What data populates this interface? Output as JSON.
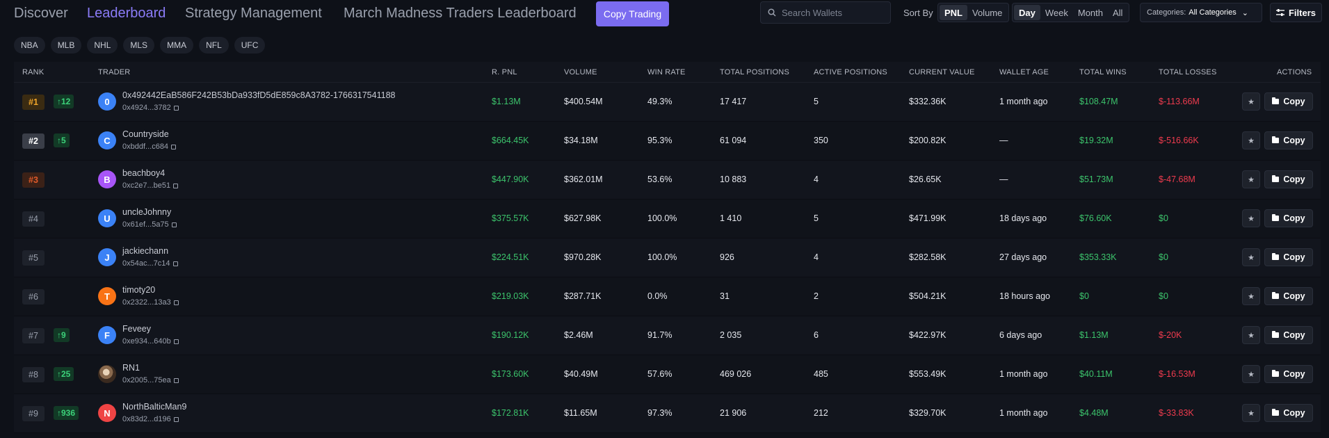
{
  "nav": {
    "discover": "Discover",
    "leaderboard": "Leaderboard",
    "strategy": "Strategy Management",
    "march_madness": "March Madness Traders Leaderboard",
    "copy_trading": "Copy Trading"
  },
  "search": {
    "placeholder": "Search Wallets",
    "icon": "search-icon"
  },
  "sort": {
    "label": "Sort By",
    "options": [
      "PNL",
      "Volume"
    ],
    "selected": "PNL"
  },
  "period": {
    "options": [
      "Day",
      "Week",
      "Month",
      "All"
    ],
    "selected": "Day"
  },
  "categories": {
    "label": "Categories:",
    "value": "All Categories"
  },
  "filters_label": "Filters",
  "sports": [
    "NBA",
    "MLB",
    "NHL",
    "MLS",
    "MMA",
    "NFL",
    "UFC"
  ],
  "columns": [
    "Rank",
    "Trader",
    "R. PNL",
    "Volume",
    "Win Rate",
    "Total Positions",
    "Active Positions",
    "Current Value",
    "Wallet Age",
    "Total Wins",
    "Total Losses",
    "Actions"
  ],
  "copy_label": "Copy",
  "colors": {
    "accent": "#7b6cf0",
    "green": "#3cc46c",
    "red": "#ef3b4e",
    "background": "#0e1118"
  },
  "rows": [
    {
      "rank": "#1",
      "change": "↑12",
      "avatar": "0",
      "avatar_color": "#3b82f6",
      "name": "0x492442EaB586F242B53bDa933fD5dE859c8A3782-1766317541188",
      "addr": "0x4924...3782",
      "pnl": "$1.13M",
      "volume": "$400.54M",
      "winrate": "49.3%",
      "total_pos": "17 417",
      "active_pos": "5",
      "current": "$332.36K",
      "age": "1 month ago",
      "wins": "$108.47M",
      "losses": "$-113.66M"
    },
    {
      "rank": "#2",
      "change": "↑5",
      "avatar": "C",
      "avatar_color": "#3b82f6",
      "name": "Countryside",
      "addr": "0xbddf...c684",
      "pnl": "$664.45K",
      "volume": "$34.18M",
      "winrate": "95.3%",
      "total_pos": "61 094",
      "active_pos": "350",
      "current": "$200.82K",
      "age": "—",
      "wins": "$19.32M",
      "losses": "$-516.66K"
    },
    {
      "rank": "#3",
      "change": "",
      "avatar": "B",
      "avatar_color": "#a855f7",
      "name": "beachboy4",
      "addr": "0xc2e7...be51",
      "pnl": "$447.90K",
      "volume": "$362.01M",
      "winrate": "53.6%",
      "total_pos": "10 883",
      "active_pos": "4",
      "current": "$26.65K",
      "age": "—",
      "wins": "$51.73M",
      "losses": "$-47.68M"
    },
    {
      "rank": "#4",
      "change": "",
      "avatar": "U",
      "avatar_color": "#3b82f6",
      "name": "uncleJohnny",
      "addr": "0x61ef...5a75",
      "pnl": "$375.57K",
      "volume": "$627.98K",
      "winrate": "100.0%",
      "total_pos": "1 410",
      "active_pos": "5",
      "current": "$471.99K",
      "age": "18 days ago",
      "wins": "$76.60K",
      "losses": "$0"
    },
    {
      "rank": "#5",
      "change": "",
      "avatar": "J",
      "avatar_color": "#3b82f6",
      "name": "jackiechann",
      "addr": "0x54ac...7c14",
      "pnl": "$224.51K",
      "volume": "$970.28K",
      "winrate": "100.0%",
      "total_pos": "926",
      "active_pos": "4",
      "current": "$282.58K",
      "age": "27 days ago",
      "wins": "$353.33K",
      "losses": "$0"
    },
    {
      "rank": "#6",
      "change": "",
      "avatar": "T",
      "avatar_color": "#f97316",
      "name": "timoty20",
      "addr": "0x2322...13a3",
      "pnl": "$219.03K",
      "volume": "$287.71K",
      "winrate": "0.0%",
      "total_pos": "31",
      "active_pos": "2",
      "current": "$504.21K",
      "age": "18 hours ago",
      "wins": "$0",
      "losses": "$0"
    },
    {
      "rank": "#7",
      "change": "↑9",
      "avatar": "F",
      "avatar_color": "#3b82f6",
      "name": "Feveey",
      "addr": "0xe934...640b",
      "pnl": "$190.12K",
      "volume": "$2.46M",
      "winrate": "91.7%",
      "total_pos": "2 035",
      "active_pos": "6",
      "current": "$422.97K",
      "age": "6 days ago",
      "wins": "$1.13M",
      "losses": "$-20K"
    },
    {
      "rank": "#8",
      "change": "↑25",
      "avatar": "",
      "avatar_color": "",
      "name": "RN1",
      "addr": "0x2005...75ea",
      "pnl": "$173.60K",
      "volume": "$40.49M",
      "winrate": "57.6%",
      "total_pos": "469 026",
      "active_pos": "485",
      "current": "$553.49K",
      "age": "1 month ago",
      "wins": "$40.11M",
      "losses": "$-16.53M"
    },
    {
      "rank": "#9",
      "change": "↑936",
      "avatar": "N",
      "avatar_color": "#ef4444",
      "name": "NorthBalticMan9",
      "addr": "0x83d2...d196",
      "pnl": "$172.81K",
      "volume": "$11.65M",
      "winrate": "97.3%",
      "total_pos": "21 906",
      "active_pos": "212",
      "current": "$329.70K",
      "age": "1 month ago",
      "wins": "$4.48M",
      "losses": "$-33.83K"
    }
  ]
}
